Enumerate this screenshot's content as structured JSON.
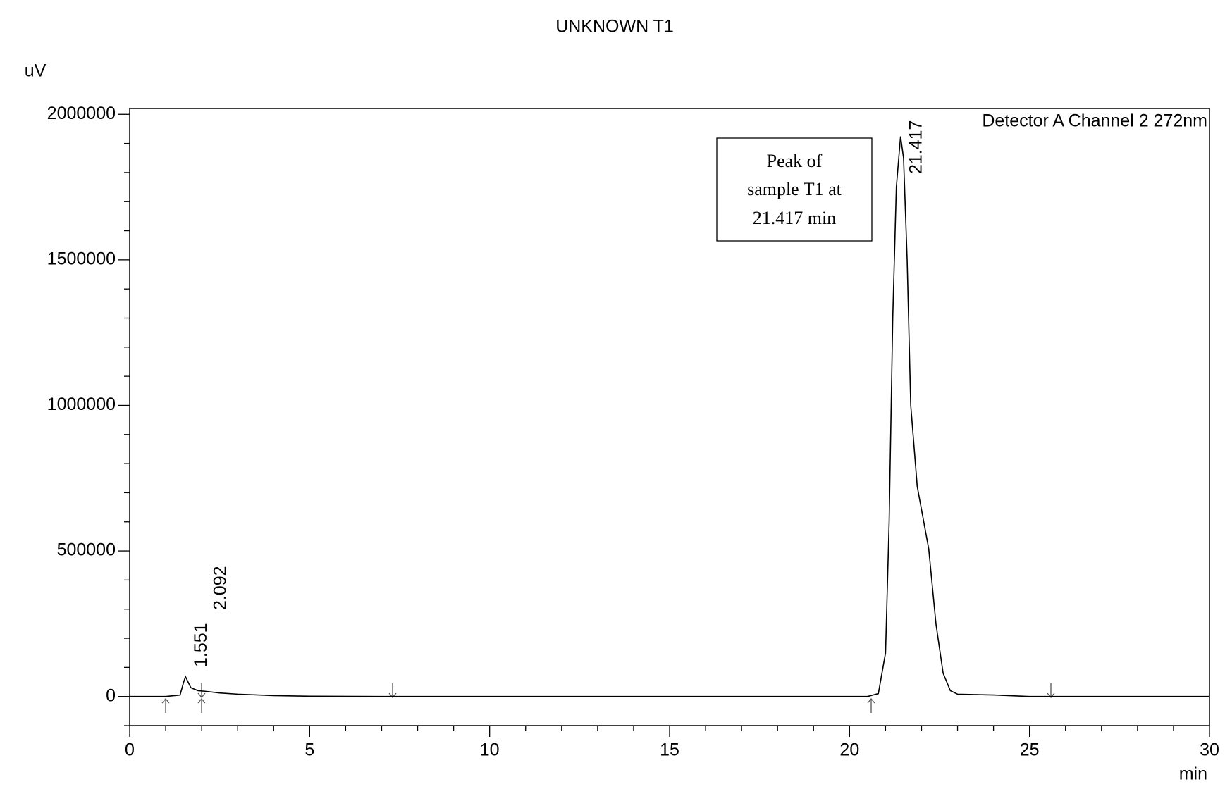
{
  "chart_data": {
    "type": "line",
    "title": "UNKNOWN T1",
    "y_label": "uV",
    "x_label": "min",
    "x": [
      0,
      1.0,
      1.4,
      1.5,
      1.551,
      1.7,
      1.9,
      2.092,
      2.5,
      3,
      4,
      5,
      7,
      20.5,
      20.8,
      21.0,
      21.1,
      21.2,
      21.3,
      21.417,
      21.5,
      21.6,
      21.7,
      21.88,
      22.2,
      22.4,
      22.6,
      22.8,
      23,
      24,
      25,
      30
    ],
    "series": [
      {
        "name": "Detector A Channel 2 272nm",
        "color": "#000000",
        "values": [
          0,
          0,
          5000,
          50000,
          68000,
          30000,
          20000,
          18000,
          12000,
          8000,
          3000,
          1000,
          0,
          0,
          10000,
          150000,
          600000,
          1300000,
          1750000,
          1924000,
          1850000,
          1500000,
          1000000,
          722000,
          507000,
          250000,
          80000,
          20000,
          8000,
          5000,
          0,
          0
        ]
      }
    ],
    "peak_labels": [
      1.551,
      2.092,
      21.417
    ],
    "annotation": [
      "Peak of",
      "sample T1 at",
      "21.417 min"
    ],
    "xlim": [
      0,
      30
    ],
    "xticks": [
      0,
      5,
      10,
      15,
      20,
      25,
      30
    ],
    "xminorticks": [
      1,
      2,
      3,
      4,
      6,
      7,
      8,
      9,
      11,
      12,
      13,
      14,
      16,
      17,
      18,
      19,
      21,
      22,
      23,
      24,
      26,
      27,
      28,
      29
    ],
    "ylim": [
      -100000,
      2020000
    ],
    "yticks": [
      0,
      500000,
      1000000,
      1500000,
      2000000
    ],
    "yminorticks": [
      -100000,
      100000,
      200000,
      300000,
      400000,
      600000,
      700000,
      800000,
      900000,
      1100000,
      1200000,
      1300000,
      1400000,
      1600000,
      1700000,
      1800000,
      1900000
    ],
    "grid": false
  }
}
